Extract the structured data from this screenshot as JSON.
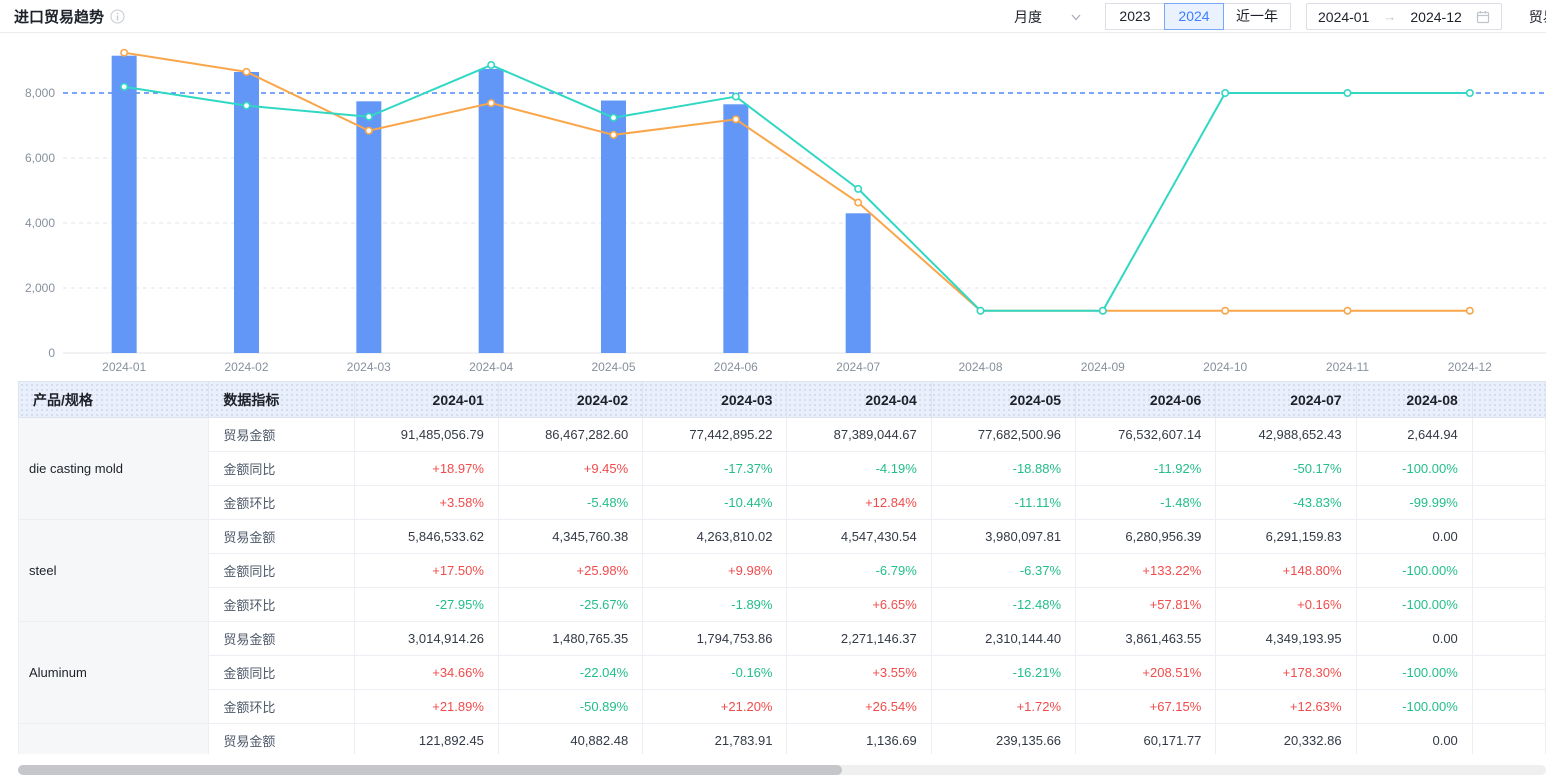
{
  "header": {
    "title": "进口贸易趋势",
    "period_select": {
      "value": "月度"
    },
    "year_buttons": [
      {
        "label": "2023",
        "active": false
      },
      {
        "label": "2024",
        "active": true
      },
      {
        "label": "近一年",
        "active": false
      }
    ],
    "date_range": {
      "start": "2024-01",
      "separator": "→",
      "end": "2024-12"
    },
    "trade_type_label": "贸易"
  },
  "chart_data": {
    "type": "bar",
    "subtype": "bar+line combo, no legend shown",
    "categories": [
      "2024-01",
      "2024-02",
      "2024-03",
      "2024-04",
      "2024-05",
      "2024-06",
      "2024-07",
      "2024-08",
      "2024-09",
      "2024-10",
      "2024-11",
      "2024-12"
    ],
    "yticks": {
      "values": [
        0,
        2000,
        4000,
        6000,
        8000
      ],
      "labels": [
        "0",
        "2,000",
        "4,000",
        "6,000",
        "8,000"
      ]
    },
    "ylim": [
      0,
      9850
    ],
    "grid": "dashed horizontal gridlines",
    "legend_position": "none",
    "series": [
      {
        "name": "trade-amount-bars",
        "type": "bar",
        "color": "#6397F7",
        "values": [
          9148,
          8647,
          7744,
          8739,
          7768,
          7653,
          4299,
          0,
          0,
          0,
          0,
          0
        ]
      },
      {
        "name": "line-orange",
        "type": "line",
        "color": "#F9A64A",
        "values": [
          9240,
          8650,
          6840,
          7690,
          6710,
          7190,
          4630,
          1300,
          1300,
          1300,
          1300,
          1300
        ]
      },
      {
        "name": "line-teal",
        "type": "line",
        "color": "#30D8C4",
        "values": [
          8190,
          7610,
          7270,
          8860,
          7240,
          7890,
          5050,
          1300,
          1300,
          8000,
          8000,
          8000
        ]
      }
    ],
    "reference_line": {
      "value": 8000,
      "color": "#4E87F7",
      "style": "dashed"
    }
  },
  "table": {
    "headers": [
      "产品/规格",
      "数据指标",
      "2024-01",
      "2024-02",
      "2024-03",
      "2024-04",
      "2024-05",
      "2024-06",
      "2024-07",
      "2024-08",
      ""
    ],
    "groups": [
      {
        "product": "die casting mold",
        "rows": [
          {
            "metric": "贸易金额",
            "values": [
              "91,485,056.79",
              "86,467,282.60",
              "77,442,895.22",
              "87,389,044.67",
              "77,682,500.96",
              "76,532,607.14",
              "42,988,652.43",
              "2,644.94"
            ]
          },
          {
            "metric": "金额同比",
            "values": [
              "+18.97%",
              "+9.45%",
              "-17.37%",
              "-4.19%",
              "-18.88%",
              "-11.92%",
              "-50.17%",
              "-100.00%"
            ]
          },
          {
            "metric": "金额环比",
            "values": [
              "+3.58%",
              "-5.48%",
              "-10.44%",
              "+12.84%",
              "-11.11%",
              "-1.48%",
              "-43.83%",
              "-99.99%"
            ]
          }
        ]
      },
      {
        "product": "steel",
        "rows": [
          {
            "metric": "贸易金额",
            "values": [
              "5,846,533.62",
              "4,345,760.38",
              "4,263,810.02",
              "4,547,430.54",
              "3,980,097.81",
              "6,280,956.39",
              "6,291,159.83",
              "0.00"
            ]
          },
          {
            "metric": "金额同比",
            "values": [
              "+17.50%",
              "+25.98%",
              "+9.98%",
              "-6.79%",
              "-6.37%",
              "+133.22%",
              "+148.80%",
              "-100.00%"
            ]
          },
          {
            "metric": "金额环比",
            "values": [
              "-27.95%",
              "-25.67%",
              "-1.89%",
              "+6.65%",
              "-12.48%",
              "+57.81%",
              "+0.16%",
              "-100.00%"
            ]
          }
        ]
      },
      {
        "product": "Aluminum",
        "rows": [
          {
            "metric": "贸易金额",
            "values": [
              "3,014,914.26",
              "1,480,765.35",
              "1,794,753.86",
              "2,271,146.37",
              "2,310,144.40",
              "3,861,463.55",
              "4,349,193.95",
              "0.00"
            ]
          },
          {
            "metric": "金额同比",
            "values": [
              "+34.66%",
              "-22.04%",
              "-0.16%",
              "+3.55%",
              "-16.21%",
              "+208.51%",
              "+178.30%",
              "-100.00%"
            ]
          },
          {
            "metric": "金额环比",
            "values": [
              "+21.89%",
              "-50.89%",
              "+21.20%",
              "+26.54%",
              "+1.72%",
              "+67.15%",
              "+12.63%",
              "-100.00%"
            ]
          }
        ]
      },
      {
        "product": "",
        "rows": [
          {
            "metric": "贸易金额",
            "values": [
              "121,892.45",
              "40,882.48",
              "21,783.91",
              "1,136.69",
              "239,135.66",
              "60,171.77",
              "20,332.86",
              "0.00"
            ]
          }
        ]
      }
    ]
  },
  "colors": {
    "accent_blue": "#3D7FFF",
    "positive_red": "#F24B4B",
    "negative_green": "#22BE8B",
    "axis_label": "#86909C",
    "grid_line": "#E5E6EB"
  }
}
